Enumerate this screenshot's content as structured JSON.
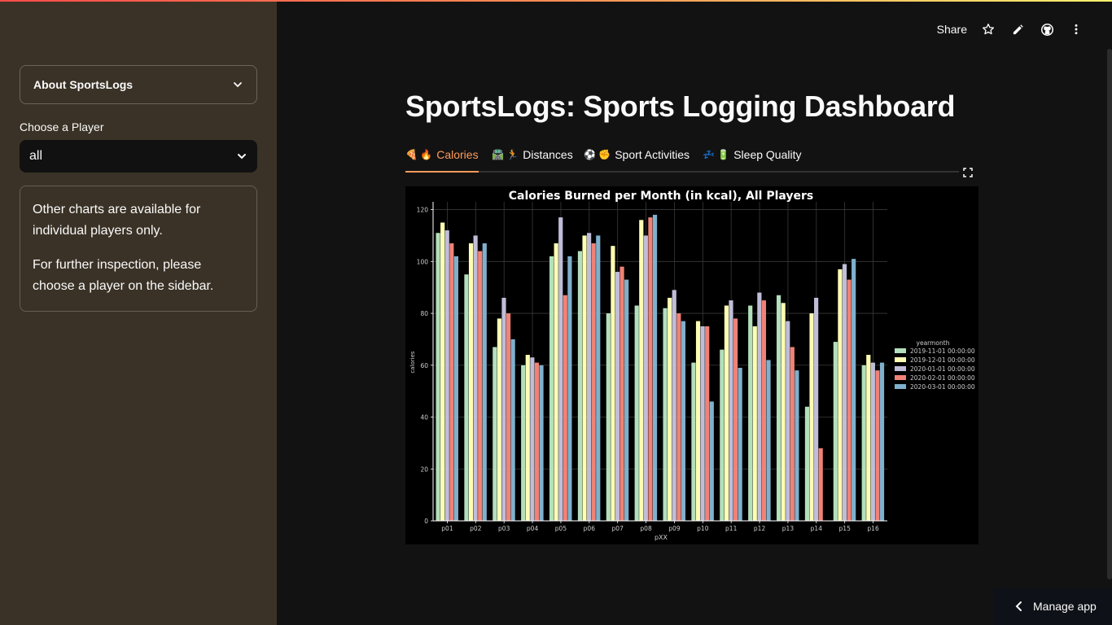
{
  "sidebar": {
    "expander_label": "About SportsLogs",
    "select_label": "Choose a Player",
    "select_value": "all",
    "info_p1": "Other charts are available for individual players only.",
    "info_p2": "For further inspection, please choose a player on the sidebar."
  },
  "header": {
    "share_label": "Share",
    "icons": [
      "star-icon",
      "pencil-icon",
      "github-icon",
      "more-vertical-icon"
    ]
  },
  "main": {
    "title": "SportsLogs: Sports Logging Dashboard",
    "tabs": [
      {
        "emoji": "🍕 🔥",
        "label": "Calories",
        "active": true
      },
      {
        "emoji": "🛣️ 🏃",
        "label": "Distances",
        "active": false
      },
      {
        "emoji": "⚽ ✊",
        "label": "Sport Activities",
        "active": false
      },
      {
        "emoji": "💤 🔋",
        "label": "Sleep Quality",
        "active": false
      }
    ]
  },
  "manage_app_label": "Manage app",
  "colors": {
    "sidebar_bg": "#3a3226",
    "main_bg": "#121212",
    "accent": "#ff9b5c"
  },
  "chart_data": {
    "type": "bar",
    "title": "Calories Burned per Month (in kcal), All Players",
    "xlabel": "pXX",
    "ylabel": "calories",
    "ylim": [
      0,
      123
    ],
    "yticks": [
      0,
      20,
      40,
      60,
      80,
      100,
      120
    ],
    "grid": true,
    "legend_title": "yearmonth",
    "legend_position": "right",
    "categories": [
      "p01",
      "p02",
      "p03",
      "p04",
      "p05",
      "p06",
      "p07",
      "p08",
      "p09",
      "p10",
      "p11",
      "p12",
      "p13",
      "p14",
      "p15",
      "p16"
    ],
    "series": [
      {
        "name": "2019-11-01 00:00:00",
        "color": "#b3dfbc",
        "values": [
          111,
          95,
          67,
          60,
          102,
          104,
          80,
          83,
          82,
          61,
          66,
          83,
          87,
          44,
          69,
          60
        ]
      },
      {
        "name": "2019-12-01 00:00:00",
        "color": "#fdfdb3",
        "values": [
          115,
          107,
          78,
          64,
          107,
          110,
          106,
          116,
          86,
          77,
          83,
          75,
          84,
          80,
          97,
          64
        ]
      },
      {
        "name": "2020-01-01 00:00:00",
        "color": "#c0bdd9",
        "values": [
          112,
          110,
          86,
          63,
          117,
          111,
          96,
          110,
          89,
          75,
          85,
          88,
          77,
          86,
          99,
          61
        ]
      },
      {
        "name": "2020-02-01 00:00:00",
        "color": "#f08276",
        "values": [
          107,
          104,
          80,
          61,
          87,
          107,
          98,
          117,
          80,
          75,
          78,
          85,
          67,
          28,
          93,
          58
        ]
      },
      {
        "name": "2020-03-01 00:00:00",
        "color": "#7fb0cc",
        "values": [
          102,
          107,
          70,
          60,
          102,
          110,
          93,
          118,
          77,
          46,
          59,
          62,
          58,
          0,
          101,
          61
        ]
      }
    ]
  }
}
